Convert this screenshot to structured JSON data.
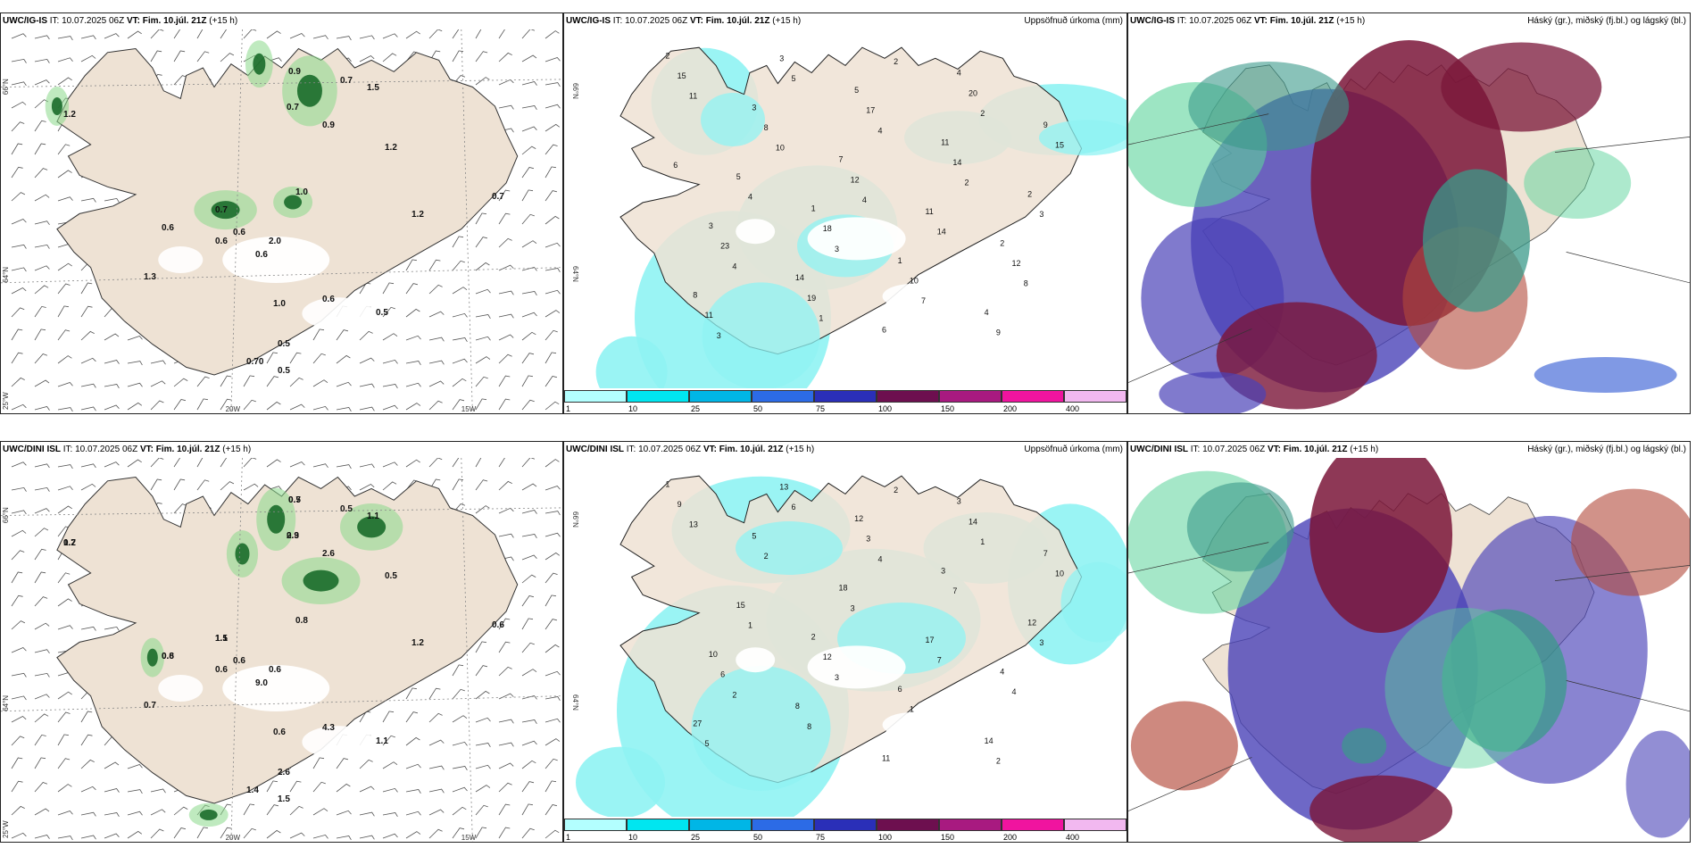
{
  "panels": {
    "top_left": {
      "model": "UWC/IG-IS",
      "it_label": "IT:",
      "it": "10.07.2025 06Z",
      "vt_label": "VT:",
      "vt": "Fim. 10.júl. 21Z",
      "lead": "(+15 h)",
      "labels": [
        "1.2",
        "0.6",
        "0.7",
        "0.9",
        "0.7",
        "0.9",
        "1.5",
        "1.2",
        "1.0",
        "0.7",
        "2.0",
        "0.6",
        "1.0",
        "0.6",
        "0.5",
        "0.5",
        "0.70",
        "0.5",
        "1.3",
        "0.6",
        "1.2",
        "0.7",
        "0.6"
      ]
    },
    "top_mid": {
      "model": "UWC/IG-IS",
      "it_label": "IT:",
      "it": "10.07.2025 06Z",
      "vt_label": "VT:",
      "vt": "Fim. 10.júl. 21Z",
      "lead": "(+15 h)",
      "right_title": "Uppsöfnuð úrkoma (mm)",
      "labels": [
        "2",
        "1",
        "4",
        "3",
        "5",
        "2",
        "3",
        "1",
        "9",
        "14",
        "11",
        "8",
        "7",
        "4",
        "5",
        "6",
        "2",
        "3",
        "11",
        "15",
        "18",
        "20",
        "23",
        "17",
        "12",
        "8",
        "10",
        "15",
        "19",
        "14",
        "11",
        "12",
        "9",
        "4",
        "2",
        "3",
        "5",
        "14",
        "11",
        "3",
        "2",
        "4",
        "4",
        "8",
        "10",
        "7",
        "6",
        "1",
        "2",
        "3",
        "4"
      ]
    },
    "top_right": {
      "model": "UWC/IG-IS",
      "it_label": "IT:",
      "it": "10.07.2025 06Z",
      "vt_label": "VT:",
      "vt": "Fim. 10.júl. 21Z",
      "lead": "(+15 h)",
      "right_title": "Háský (gr.), miðský (fj.bl.) og lágský (bl.)"
    },
    "bottom_left": {
      "model": "UWC/DINI ISL",
      "it_label": "IT:",
      "it": "10.07.2025 06Z",
      "vt_label": "VT:",
      "vt": "Fim. 10.júl. 21Z",
      "lead": "(+15 h)",
      "labels": [
        "0.7",
        "0.8",
        "1.5",
        "0.7",
        "0.9",
        "2.6",
        "1.1",
        "0.5",
        "0.8",
        "0.6",
        "0.6",
        "9.0",
        "0.6",
        "4.3",
        "1.1",
        "2.6",
        "1.4",
        "1.5",
        "0.7",
        "0.6",
        "1.2",
        "0.5",
        "0.6",
        "1.2",
        "0.6",
        "1.1",
        "0.5",
        "2.3"
      ]
    },
    "bottom_mid": {
      "model": "UWC/DINI ISL",
      "it_label": "IT:",
      "it": "10.07.2025 06Z",
      "vt_label": "VT:",
      "vt": "Fim. 10.júl. 21Z",
      "lead": "(+15 h)",
      "right_title": "Uppsöfnuð úrkoma (mm)",
      "labels": [
        "1",
        "2",
        "3",
        "10",
        "12",
        "4",
        "5",
        "6",
        "7",
        "8",
        "3",
        "27",
        "18",
        "14",
        "15",
        "11",
        "12",
        "13",
        "17",
        "9",
        "12",
        "14",
        "6",
        "3",
        "4",
        "2",
        "1",
        "10",
        "8",
        "7",
        "5",
        "3",
        "2",
        "1",
        "2",
        "3",
        "6",
        "7",
        "13",
        "3",
        "1",
        "2",
        "4"
      ]
    },
    "bottom_right": {
      "model": "UWC/DINI ISL",
      "it_label": "IT:",
      "it": "10.07.2025 06Z",
      "vt_label": "VT:",
      "vt": "Fim. 10.júl. 21Z",
      "lead": "(+15 h)",
      "right_title": "Háský (gr.), miðský (fj.bl.) og lágský (bl.)"
    }
  },
  "axes": {
    "lat_66": "66°N",
    "lat_64": "64°N",
    "lon_25": "25°W",
    "lon_20": "20W",
    "lon_15": "15W"
  },
  "colorbar": {
    "ticks": [
      "1",
      "10",
      "25",
      "50",
      "75",
      "100",
      "150",
      "200",
      "400"
    ],
    "colors": [
      "#b3ffff",
      "#00e6f0",
      "#00b6e6",
      "#2c6be6",
      "#2a2fb8",
      "#6d0f4f",
      "#a81a80",
      "#f0149f",
      "#f2b8f0"
    ]
  },
  "colors": {
    "land": "#eee2d4",
    "cyan": "#8ff3f3",
    "green": "#8ad88a",
    "darkgreen": "#1a6b2a",
    "maroon": "#7a1538",
    "purple": "#4a42b8",
    "teal": "#3a9a8a"
  }
}
